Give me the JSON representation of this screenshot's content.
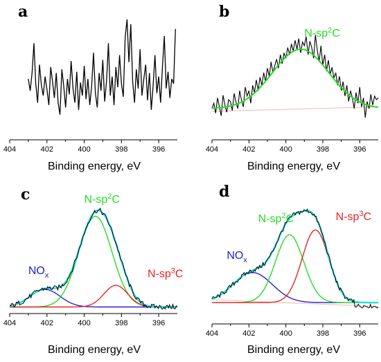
{
  "chart_data": [
    {
      "panel": "a",
      "type": "line",
      "xlabel": "Binding energy, eV",
      "ylabel": "",
      "xlim": [
        404,
        395
      ],
      "x_reversed": true,
      "ylim": [
        0,
        1
      ],
      "xticks": [
        404,
        402,
        400,
        398,
        396
      ],
      "series": [
        {
          "color": "#000000",
          "x": [
            403.0,
            402.9,
            402.8,
            402.7,
            402.6,
            402.5,
            402.4,
            402.3,
            402.2,
            402.1,
            402.0,
            401.9,
            401.8,
            401.7,
            401.6,
            401.5,
            401.4,
            401.3,
            401.2,
            401.1,
            401.0,
            400.9,
            400.8,
            400.7,
            400.6,
            400.5,
            400.4,
            400.3,
            400.2,
            400.1,
            400.0,
            399.9,
            399.8,
            399.7,
            399.6,
            399.5,
            399.4,
            399.3,
            399.2,
            399.1,
            399.0,
            398.9,
            398.8,
            398.7,
            398.6,
            398.5,
            398.4,
            398.3,
            398.2,
            398.1,
            398.0,
            397.9,
            397.8,
            397.7,
            397.6,
            397.5,
            397.4,
            397.3,
            397.2,
            397.1,
            397.0,
            396.9,
            396.8,
            396.7,
            396.6,
            396.5,
            396.4,
            396.3,
            396.2,
            396.1,
            396.0,
            395.9,
            395.8,
            395.7,
            395.6,
            395.5,
            395.4,
            395.3,
            395.2,
            395.1
          ],
          "y": [
            0.5,
            0.4,
            0.55,
            0.8,
            0.46,
            0.3,
            0.62,
            0.45,
            0.36,
            0.52,
            0.41,
            0.28,
            0.6,
            0.48,
            0.34,
            0.55,
            0.3,
            0.2,
            0.58,
            0.44,
            0.26,
            0.5,
            0.37,
            0.65,
            0.42,
            0.3,
            0.56,
            0.24,
            0.47,
            0.36,
            0.61,
            0.33,
            0.5,
            0.28,
            0.44,
            0.72,
            0.38,
            0.26,
            0.55,
            0.4,
            0.66,
            0.31,
            0.48,
            0.8,
            0.36,
            0.52,
            0.28,
            0.6,
            0.43,
            0.7,
            0.46,
            0.35,
            0.85,
            1.0,
            0.64,
            0.96,
            0.48,
            0.3,
            0.58,
            0.42,
            0.75,
            0.36,
            0.5,
            0.62,
            0.32,
            0.55,
            0.24,
            0.44,
            0.7,
            0.38,
            0.52,
            0.3,
            0.6,
            0.86,
            0.42,
            0.56,
            0.34,
            0.5,
            0.46,
            0.92
          ]
        }
      ]
    },
    {
      "panel": "b",
      "type": "line",
      "xlabel": "Binding energy, eV",
      "ylabel": "",
      "xlim": [
        404,
        395
      ],
      "x_reversed": true,
      "ylim": [
        0,
        1
      ],
      "xticks": [
        404,
        402,
        400,
        398,
        396
      ],
      "annotations": [
        {
          "label": "N-sp",
          "sup": "2",
          "suffix": "C",
          "color": "#22dd22",
          "x": 399.0,
          "y": 0.9
        }
      ],
      "series": [
        {
          "name_role": "raw",
          "color": "#000000",
          "x": [
            404.0,
            403.9,
            403.8,
            403.7,
            403.6,
            403.5,
            403.4,
            403.3,
            403.2,
            403.1,
            403.0,
            402.9,
            402.8,
            402.7,
            402.6,
            402.5,
            402.4,
            402.3,
            402.2,
            402.1,
            402.0,
            401.9,
            401.8,
            401.7,
            401.6,
            401.5,
            401.4,
            401.3,
            401.2,
            401.1,
            401.0,
            400.9,
            400.8,
            400.7,
            400.6,
            400.5,
            400.4,
            400.3,
            400.2,
            400.1,
            400.0,
            399.9,
            399.8,
            399.7,
            399.6,
            399.5,
            399.4,
            399.3,
            399.2,
            399.1,
            399.0,
            398.9,
            398.8,
            398.7,
            398.6,
            398.5,
            398.4,
            398.3,
            398.2,
            398.1,
            398.0,
            397.9,
            397.8,
            397.7,
            397.6,
            397.5,
            397.4,
            397.3,
            397.2,
            397.1,
            397.0,
            396.9,
            396.8,
            396.7,
            396.6,
            396.5,
            396.4,
            396.3,
            396.2,
            396.1,
            396.0,
            395.9,
            395.8,
            395.7,
            395.6,
            395.5,
            395.4,
            395.3,
            395.2,
            395.1,
            395.0
          ],
          "y": [
            0.1,
            0.16,
            0.05,
            0.22,
            0.12,
            0.02,
            0.25,
            0.14,
            0.06,
            0.2,
            0.18,
            0.08,
            0.27,
            0.17,
            0.1,
            0.3,
            0.19,
            0.12,
            0.34,
            0.24,
            0.3,
            0.16,
            0.36,
            0.28,
            0.42,
            0.3,
            0.45,
            0.36,
            0.5,
            0.4,
            0.55,
            0.46,
            0.62,
            0.5,
            0.58,
            0.65,
            0.55,
            0.7,
            0.6,
            0.72,
            0.66,
            0.78,
            0.7,
            0.82,
            0.74,
            0.86,
            0.76,
            0.88,
            0.72,
            0.84,
            0.8,
            0.9,
            0.7,
            0.85,
            0.78,
            0.66,
            0.92,
            0.75,
            0.62,
            0.8,
            0.58,
            0.7,
            0.52,
            0.64,
            0.48,
            0.56,
            0.44,
            0.5,
            0.36,
            0.46,
            0.3,
            0.4,
            0.24,
            0.36,
            0.18,
            0.3,
            0.22,
            0.1,
            0.28,
            0.16,
            0.34,
            0.12,
            0.22,
            0.0,
            0.18,
            0.1,
            0.26,
            0.14,
            0.24,
            0.2,
            0.22
          ]
        },
        {
          "name_role": "fit",
          "color": "#22dd22",
          "peak": {
            "center": 399.2,
            "fwhm": 3.6,
            "height": 0.66,
            "baseline": 0.1
          }
        },
        {
          "name_role": "background",
          "color": "#f3b7b7",
          "x": [
            404,
            395
          ],
          "y": [
            0.07,
            0.12
          ]
        }
      ]
    },
    {
      "panel": "c",
      "type": "line",
      "xlabel": "Binding energy, eV",
      "ylabel": "",
      "xlim": [
        404,
        395
      ],
      "x_reversed": true,
      "ylim": [
        0,
        1
      ],
      "xticks": [
        404,
        402,
        400,
        398,
        396
      ],
      "annotations": [
        {
          "label": "N-sp",
          "sup": "2",
          "suffix": "C",
          "color": "#22dd22",
          "x": 400.0,
          "y": 1.02
        },
        {
          "label": "NO",
          "sub": "x",
          "suffix": "",
          "color": "#2222cc",
          "x": 403.0,
          "y": 0.33
        },
        {
          "label": "N-sp",
          "sup": "3",
          "suffix": "C",
          "color": "#ee2222",
          "x": 396.6,
          "y": 0.3
        }
      ],
      "series": [
        {
          "name_role": "NOx",
          "color": "#2222cc",
          "peak": {
            "center": 402.1,
            "fwhm": 1.9,
            "height": 0.17,
            "baseline": 0.01
          }
        },
        {
          "name_role": "N-sp2C",
          "color": "#22dd22",
          "peak": {
            "center": 399.4,
            "fwhm": 2.1,
            "height": 0.88,
            "baseline": 0.01
          }
        },
        {
          "name_role": "N-sp3C",
          "color": "#ee2222",
          "peak": {
            "center": 398.3,
            "fwhm": 1.5,
            "height": 0.21,
            "baseline": 0.01
          }
        },
        {
          "name_role": "envelope",
          "color": "#22dddd"
        },
        {
          "name_role": "raw",
          "color": "#000000"
        }
      ]
    },
    {
      "panel": "d",
      "type": "line",
      "xlabel": "Binding energy, eV",
      "ylabel": "",
      "xlim": [
        404,
        395
      ],
      "x_reversed": true,
      "ylim": [
        0,
        1
      ],
      "xticks": [
        404,
        402,
        400,
        398,
        396
      ],
      "annotations": [
        {
          "label": "N-sp",
          "sup": "2",
          "suffix": "C",
          "color": "#22dd22",
          "x": 401.5,
          "y": 0.85
        },
        {
          "label": "N-sp",
          "sup": "3",
          "suffix": "C",
          "color": "#ee2222",
          "x": 397.3,
          "y": 0.87
        },
        {
          "label": "NO",
          "sub": "x",
          "suffix": "",
          "color": "#2222cc",
          "x": 403.2,
          "y": 0.47
        }
      ],
      "series": [
        {
          "name_role": "NOx",
          "color": "#2222cc",
          "peak": {
            "center": 401.8,
            "fwhm": 2.5,
            "height": 0.31,
            "baseline": 0.02
          }
        },
        {
          "name_role": "N-sp2C",
          "color": "#22dd22",
          "peak": {
            "center": 399.8,
            "fwhm": 1.8,
            "height": 0.7,
            "baseline": 0.02
          }
        },
        {
          "name_role": "N-sp3C",
          "color": "#ee2222",
          "peak": {
            "center": 398.4,
            "fwhm": 1.7,
            "height": 0.75,
            "baseline": 0.02
          }
        },
        {
          "name_role": "envelope",
          "color": "#22dddd"
        },
        {
          "name_role": "raw",
          "color": "#000000"
        },
        {
          "name_role": "background",
          "color": "#f3b7b7",
          "x": [
            404,
            395
          ],
          "y": [
            0.05,
            -0.02
          ]
        }
      ]
    }
  ],
  "panels": {
    "a": {
      "letter": "a",
      "xlabel": "Binding energy, eV",
      "ticks": [
        "404",
        "402",
        "400",
        "398",
        "396"
      ]
    },
    "b": {
      "letter": "b",
      "xlabel": "Binding energy, eV",
      "ticks": [
        "404",
        "402",
        "400",
        "398",
        "396"
      ]
    },
    "c": {
      "letter": "c",
      "xlabel": "Binding energy, eV",
      "ticks": [
        "404",
        "402",
        "400",
        "398",
        "396"
      ]
    },
    "d": {
      "letter": "d",
      "xlabel": "Binding energy, eV",
      "ticks": [
        "404",
        "402",
        "400",
        "398",
        "396"
      ]
    }
  }
}
